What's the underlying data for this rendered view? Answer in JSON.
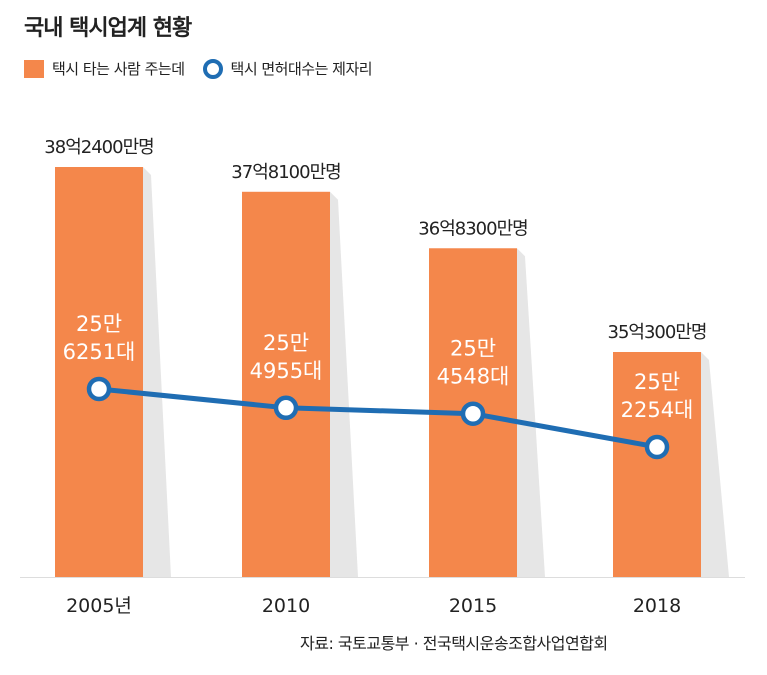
{
  "title": "국내 택시업계 현황",
  "legend": {
    "riders": "택시 타는 사람 주는데",
    "drivers": "택시 면허대수는 제자리"
  },
  "source": "자료: 국토교통부 · 전국택시운송조합사업연합회",
  "colors": {
    "bar": "#f4874b",
    "line": "#1f6db3",
    "shadow": "#e6e6e6"
  },
  "chart_data": {
    "type": "bar",
    "title": "국내 택시업계 현황",
    "categories": [
      "2005년",
      "2010",
      "2015",
      "2018"
    ],
    "series": [
      {
        "name": "택시 타는 사람 주는데",
        "type": "bar",
        "values": [
          3824000000,
          3781000000,
          3683000000,
          3503000000
        ],
        "labels": [
          "38억2400만명",
          "37억8100만명",
          "36억8300만명",
          "35억300만명"
        ]
      },
      {
        "name": "택시 면허대수는 제자리",
        "type": "line",
        "values": [
          256251,
          254955,
          254548,
          252254
        ],
        "labels": [
          [
            "25만",
            "6251대"
          ],
          [
            "25만",
            "4955대"
          ],
          [
            "25만",
            "4548대"
          ],
          [
            "25만",
            "2254대"
          ]
        ]
      }
    ],
    "xlabel": "",
    "ylabel": ""
  }
}
